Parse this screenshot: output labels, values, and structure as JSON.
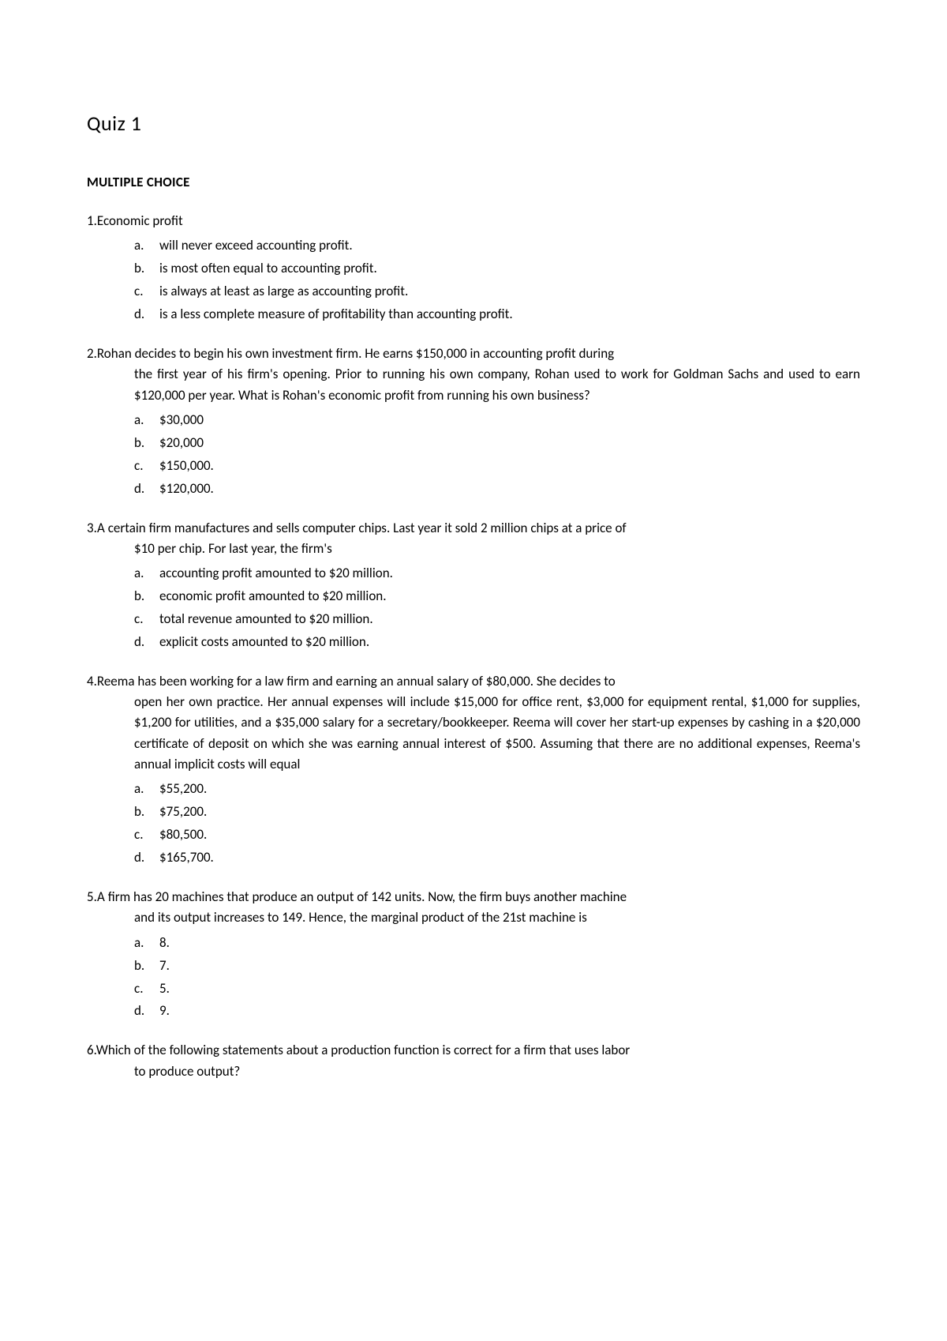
{
  "page_title": "Quiz 1",
  "section_heading": "MULTIPLE CHOICE",
  "questions": [
    {
      "number": "1.",
      "stem": "Economic profit",
      "continuation": "",
      "options": [
        {
          "letter": "a.",
          "text": "will never exceed accounting profit."
        },
        {
          "letter": "b.",
          "text": "is most often equal to accounting profit."
        },
        {
          "letter": "c.",
          "text": "is always at least as large as accounting profit."
        },
        {
          "letter": "d.",
          "text": "is a less complete measure of profitability than accounting profit."
        }
      ]
    },
    {
      "number": "2.",
      "stem": "Rohan decides to begin his own investment firm. He earns $150,000 in accounting profit during",
      "continuation": "the first year of his firm's opening. Prior to running his own company, Rohan used to work for Goldman Sachs and used to earn $120,000 per year. What is Rohan's economic profit from running his own business?",
      "options": [
        {
          "letter": "a.",
          "text": "$30,000"
        },
        {
          "letter": "b.",
          "text": "$20,000"
        },
        {
          "letter": "c.",
          "text": "$150,000."
        },
        {
          "letter": "d.",
          "text": "$120,000."
        }
      ]
    },
    {
      "number": "3.",
      "stem": "A certain firm manufactures and sells computer chips. Last year it sold 2 million chips at a price of",
      "continuation": "$10 per chip. For last year, the firm's",
      "options": [
        {
          "letter": "a.",
          "text": "accounting profit amounted to $20 million."
        },
        {
          "letter": "b.",
          "text": "economic profit amounted to $20 million."
        },
        {
          "letter": "c.",
          "text": "total revenue amounted to $20 million."
        },
        {
          "letter": "d.",
          "text": "explicit costs amounted to $20 million."
        }
      ]
    },
    {
      "number": "4.",
      "stem": "Reema has been working for a law firm and earning an annual salary of $80,000. She decides to",
      "continuation": "open her own practice. Her annual expenses will include $15,000 for office rent, $3,000 for equipment rental, $1,000 for supplies, $1,200 for utilities, and a $35,000 salary for a secretary/bookkeeper. Reema will cover her start-up expenses by cashing in a $20,000 certificate of deposit on which she was earning annual interest of $500. Assuming that there are no additional expenses, Reema's annual implicit costs will equal",
      "options": [
        {
          "letter": "a.",
          "text": "$55,200."
        },
        {
          "letter": "b.",
          "text": "$75,200."
        },
        {
          "letter": "c.",
          "text": "$80,500."
        },
        {
          "letter": "d.",
          "text": "$165,700."
        }
      ]
    },
    {
      "number": "5.",
      "stem": "A firm has 20 machines that produce an output of 142 units. Now, the firm buys another machine",
      "continuation": "and its output increases to 149. Hence, the marginal product of the 21st machine is",
      "options": [
        {
          "letter": "a.",
          "text": "8."
        },
        {
          "letter": "b.",
          "text": "7."
        },
        {
          "letter": "c.",
          "text": "5."
        },
        {
          "letter": "d.",
          "text": "9."
        }
      ]
    },
    {
      "number": "6.",
      "stem": "Which of the following statements about a production function is correct for a firm that uses labor",
      "continuation": "to produce output?",
      "options": []
    }
  ]
}
